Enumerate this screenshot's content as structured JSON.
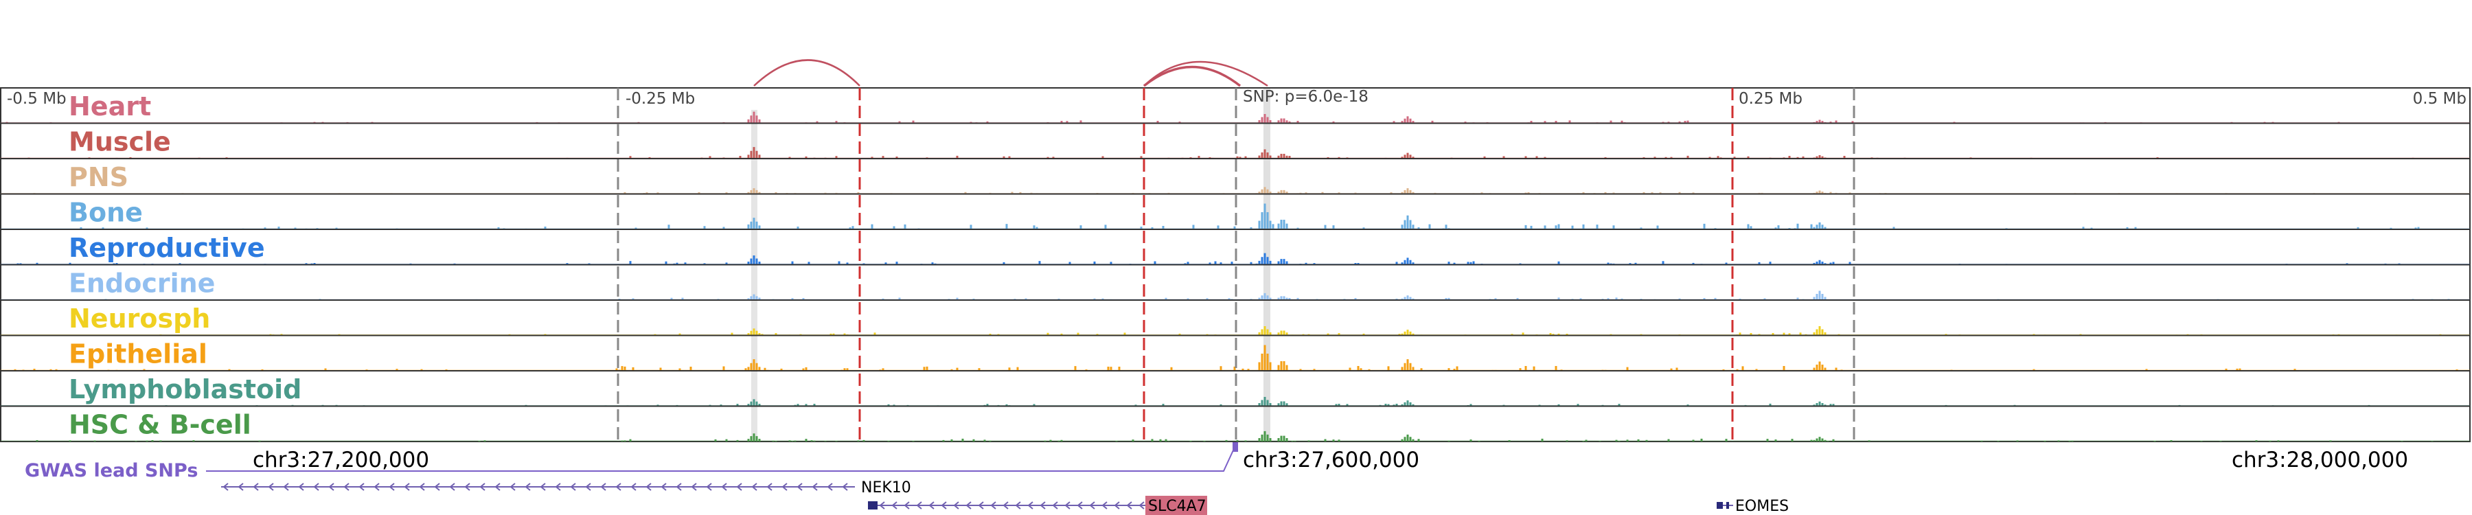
{
  "scale_labels": {
    "left": "-0.5 Mb",
    "mid_left": "-0.25 Mb",
    "snp": "SNP: p=6.0e-18",
    "mid_right": "0.25 Mb",
    "right": "0.5 Mb"
  },
  "tracks": [
    {
      "name": "Heart",
      "color": "#d16b80",
      "level": 0.35,
      "peaks": [
        1.0,
        0.8,
        0.5,
        0.6,
        0.3
      ]
    },
    {
      "name": "Muscle",
      "color": "#c45a55",
      "level": 0.35,
      "peaks": [
        1.0,
        0.8,
        0.5,
        0.5,
        0.3
      ]
    },
    {
      "name": "PNS",
      "color": "#dcb48c",
      "level": 0.25,
      "peaks": [
        0.5,
        0.6,
        0.4,
        0.5,
        0.3
      ]
    },
    {
      "name": "Bone",
      "color": "#6aaee0",
      "level": 0.7,
      "peaks": [
        1.0,
        2.5,
        1.0,
        1.2,
        0.6
      ]
    },
    {
      "name": "Reproductive",
      "color": "#2c7be0",
      "level": 0.45,
      "peaks": [
        0.8,
        1.0,
        0.6,
        0.6,
        0.4
      ]
    },
    {
      "name": "Endocrine",
      "color": "#92bff0",
      "level": 0.3,
      "peaks": [
        0.5,
        0.6,
        0.4,
        0.4,
        0.8
      ]
    },
    {
      "name": "Neurosph",
      "color": "#f0d020",
      "level": 0.35,
      "peaks": [
        0.6,
        0.8,
        0.5,
        0.5,
        0.8
      ]
    },
    {
      "name": "Epithelial",
      "color": "#f5a015",
      "level": 0.6,
      "peaks": [
        1.0,
        2.8,
        1.0,
        1.0,
        0.8
      ]
    },
    {
      "name": "Lymphoblastoid",
      "color": "#4a9a8a",
      "level": 0.3,
      "peaks": [
        0.6,
        0.8,
        0.5,
        0.5,
        0.4
      ]
    },
    {
      "name": "HSC & B-cell",
      "color": "#4a9a4a",
      "level": 0.35,
      "peaks": [
        0.7,
        0.9,
        0.6,
        0.6,
        0.4
      ]
    }
  ],
  "gwas_label": "GWAS lead SNPs",
  "coordinates": [
    "chr3:27,200,000",
    "chr3:27,600,000",
    "chr3:28,000,000"
  ],
  "genes": [
    {
      "name": "NEK10",
      "strand": "-"
    },
    {
      "name": "SLC4A7",
      "strand": "-",
      "highlight_color": "#d16b80"
    },
    {
      "name": "EOMES",
      "strand": "-"
    }
  ],
  "colors": {
    "track_border": "#333333",
    "dashed_red": "#d03030",
    "dashed_gray": "#888888",
    "snp_highlight": "#cccccc",
    "gwas": "#7b5fc8",
    "arc": "#c05060",
    "gene_line": "#7060b0",
    "gene_box": "#2a2a7a"
  }
}
